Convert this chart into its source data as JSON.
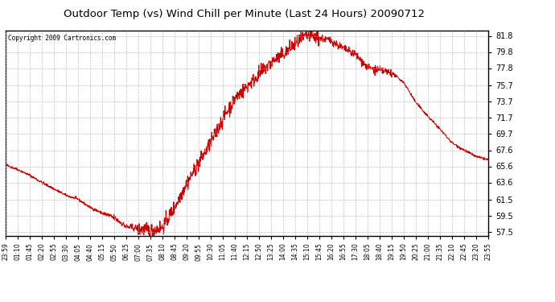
{
  "title": "Outdoor Temp (vs) Wind Chill per Minute (Last 24 Hours) 20090712",
  "copyright_text": "Copyright 2009 Cartronics.com",
  "line_color": "#cc0000",
  "background_color": "#ffffff",
  "grid_color": "#b0b0b0",
  "yticks": [
    57.5,
    59.5,
    61.5,
    63.6,
    65.6,
    67.6,
    69.7,
    71.7,
    73.7,
    75.7,
    77.8,
    79.8,
    81.8
  ],
  "ylim": [
    57.0,
    82.5
  ],
  "xtick_labels": [
    "23:59",
    "01:10",
    "01:45",
    "02:20",
    "02:55",
    "03:30",
    "04:05",
    "04:40",
    "05:15",
    "05:50",
    "06:25",
    "07:00",
    "07:35",
    "08:10",
    "08:45",
    "09:20",
    "09:55",
    "10:30",
    "11:05",
    "11:40",
    "12:15",
    "12:50",
    "13:25",
    "14:00",
    "14:35",
    "15:10",
    "15:45",
    "16:20",
    "16:55",
    "17:30",
    "18:05",
    "18:40",
    "19:15",
    "19:50",
    "20:25",
    "21:00",
    "21:35",
    "22:10",
    "22:45",
    "23:20",
    "23:55"
  ],
  "ctrl_x": [
    0,
    1,
    2,
    3,
    4,
    5,
    6,
    7,
    8,
    9,
    10,
    11,
    12,
    13,
    14,
    15,
    16,
    17,
    18,
    19,
    20,
    21,
    22,
    23,
    24,
    25,
    26,
    27,
    28,
    29,
    30,
    31,
    32,
    33,
    34,
    35,
    36,
    37,
    38,
    39,
    40
  ],
  "ctrl_y": [
    65.8,
    65.2,
    64.5,
    63.6,
    62.8,
    62.0,
    61.5,
    60.5,
    59.8,
    59.2,
    58.1,
    57.9,
    57.6,
    58.0,
    60.5,
    63.5,
    66.0,
    68.5,
    71.5,
    74.0,
    75.5,
    77.0,
    78.5,
    79.5,
    80.8,
    81.8,
    81.5,
    81.2,
    80.2,
    79.5,
    77.8,
    77.5,
    77.2,
    76.0,
    73.5,
    71.8,
    70.2,
    68.5,
    67.6,
    66.8,
    66.4
  ]
}
